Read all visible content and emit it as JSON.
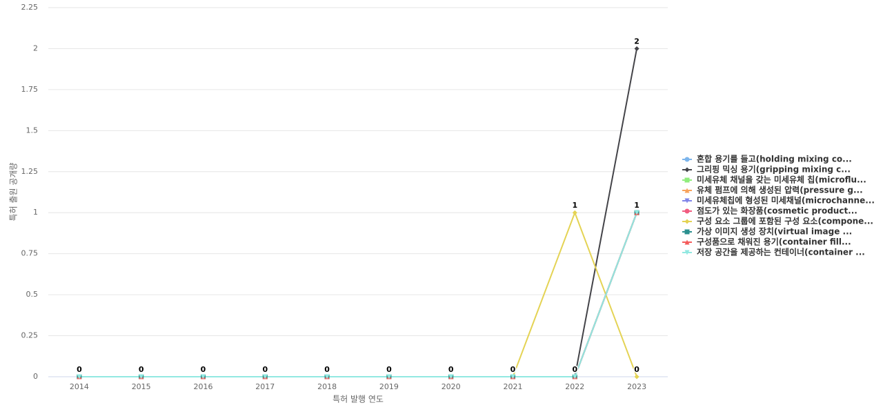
{
  "chart_data": {
    "type": "line",
    "x_label": "특허 발행 연도",
    "y_label": "특허 출원 공개량",
    "categories": [
      "2014",
      "2015",
      "2016",
      "2017",
      "2018",
      "2019",
      "2020",
      "2021",
      "2022",
      "2023"
    ],
    "ylim": [
      0,
      2.25
    ],
    "yticks": [
      0,
      0.25,
      0.5,
      0.75,
      1,
      1.25,
      1.5,
      1.75,
      2,
      2.25
    ],
    "grid": true,
    "series": [
      {
        "name": "혼합 용기를 들고(holding mixing co...",
        "color": "#7cb5ec",
        "values": [
          0,
          0,
          0,
          0,
          0,
          0,
          0,
          0,
          0,
          1
        ]
      },
      {
        "name": "그리핑 믹싱 용기(gripping mixing c...",
        "color": "#434348",
        "values": [
          0,
          0,
          0,
          0,
          0,
          0,
          0,
          0,
          0,
          2
        ]
      },
      {
        "name": "미세유체 채널을 갖는 미세유체 칩(microflu...",
        "color": "#90ed7d",
        "values": [
          0,
          0,
          0,
          0,
          0,
          0,
          0,
          0,
          0,
          1
        ]
      },
      {
        "name": "유체 펌프에 의해 생성된 압력(pressure g...",
        "color": "#f7a35c",
        "values": [
          0,
          0,
          0,
          0,
          0,
          0,
          0,
          0,
          0,
          1
        ]
      },
      {
        "name": "미세유체칩에 형성된 미세채널(microchanne...",
        "color": "#8085e9",
        "values": [
          0,
          0,
          0,
          0,
          0,
          0,
          0,
          0,
          0,
          1
        ]
      },
      {
        "name": "점도가 있는 화장품(cosmetic product...",
        "color": "#f15c80",
        "values": [
          0,
          0,
          0,
          0,
          0,
          0,
          0,
          0,
          0,
          1
        ]
      },
      {
        "name": "구성 요소 그룹에 포함된 구성 요소(compone...",
        "color": "#e4d354",
        "values": [
          0,
          0,
          0,
          0,
          0,
          0,
          0,
          0,
          1,
          0
        ]
      },
      {
        "name": "가상 이미지 생성 장치(virtual image ...",
        "color": "#2b908f",
        "values": [
          0,
          0,
          0,
          0,
          0,
          0,
          0,
          0,
          0,
          1
        ]
      },
      {
        "name": "구성품으로 채워진 용기(container fill...",
        "color": "#f45b5b",
        "values": [
          0,
          0,
          0,
          0,
          0,
          0,
          0,
          0,
          0,
          1
        ]
      },
      {
        "name": "저장 공간을 제공하는 컨테이너(container ...",
        "color": "#91e8e1",
        "values": [
          0,
          0,
          0,
          0,
          0,
          0,
          0,
          0,
          0,
          1
        ]
      }
    ]
  }
}
